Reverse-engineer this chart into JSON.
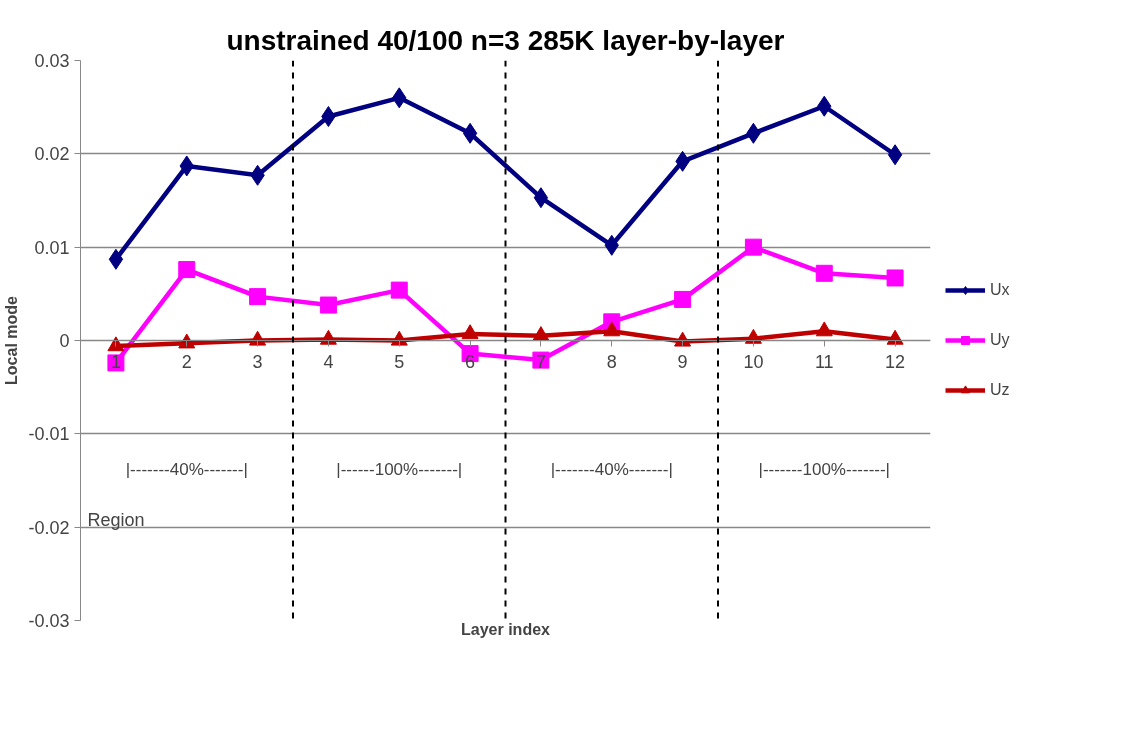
{
  "chart_data": {
    "type": "line",
    "title": "unstrained 40/100 n=3 285K layer-by-layer",
    "xlabel": "Layer index",
    "ylabel": "Local mode",
    "x": [
      1,
      2,
      3,
      4,
      5,
      6,
      7,
      8,
      9,
      10,
      11,
      12
    ],
    "xlim": [
      0.5,
      12.5
    ],
    "xticks": [
      1,
      2,
      3,
      4,
      5,
      6,
      7,
      8,
      9,
      10,
      11,
      12
    ],
    "ylim": [
      -0.03,
      0.03
    ],
    "yticks": [
      -0.03,
      -0.02,
      -0.01,
      0,
      0.01,
      0.02,
      0.03
    ],
    "series": [
      {
        "name": "Ux",
        "color": "#000080",
        "marker": "diamond",
        "values": [
          0.0087,
          0.0187,
          0.0177,
          0.024,
          0.026,
          0.0222,
          0.0153,
          0.0102,
          0.0192,
          0.0222,
          0.0251,
          0.0199
        ]
      },
      {
        "name": "Uy",
        "color": "#ff00ff",
        "marker": "square",
        "values": [
          -0.0024,
          0.0076,
          0.0047,
          0.0038,
          0.0054,
          -0.0014,
          -0.0021,
          0.002,
          0.0044,
          0.01,
          0.0072,
          0.0067
        ]
      },
      {
        "name": "Uz",
        "color": "#c00000",
        "marker": "triangle",
        "values": [
          -0.0006,
          -0.0003,
          0,
          0.0001,
          0,
          0.0007,
          0.0005,
          0.001,
          -0.0001,
          0.0002,
          0.001,
          0.0001
        ]
      }
    ],
    "ref_lines": [
      {
        "axis": "x",
        "value": 3.5,
        "color": "#000000",
        "line_style": "dashed"
      },
      {
        "axis": "x",
        "value": 6.5,
        "color": "#000000",
        "line_style": "dashed"
      },
      {
        "axis": "x",
        "value": 9.5,
        "color": "#000000",
        "line_style": "dashed"
      }
    ],
    "annotations": [
      "|-------40%-------|",
      "|------100%-------|",
      "|-------40%-------|",
      "|-------100%-------|",
      "Region"
    ],
    "grid": "y",
    "legend": "right",
    "line_style": "solid"
  }
}
